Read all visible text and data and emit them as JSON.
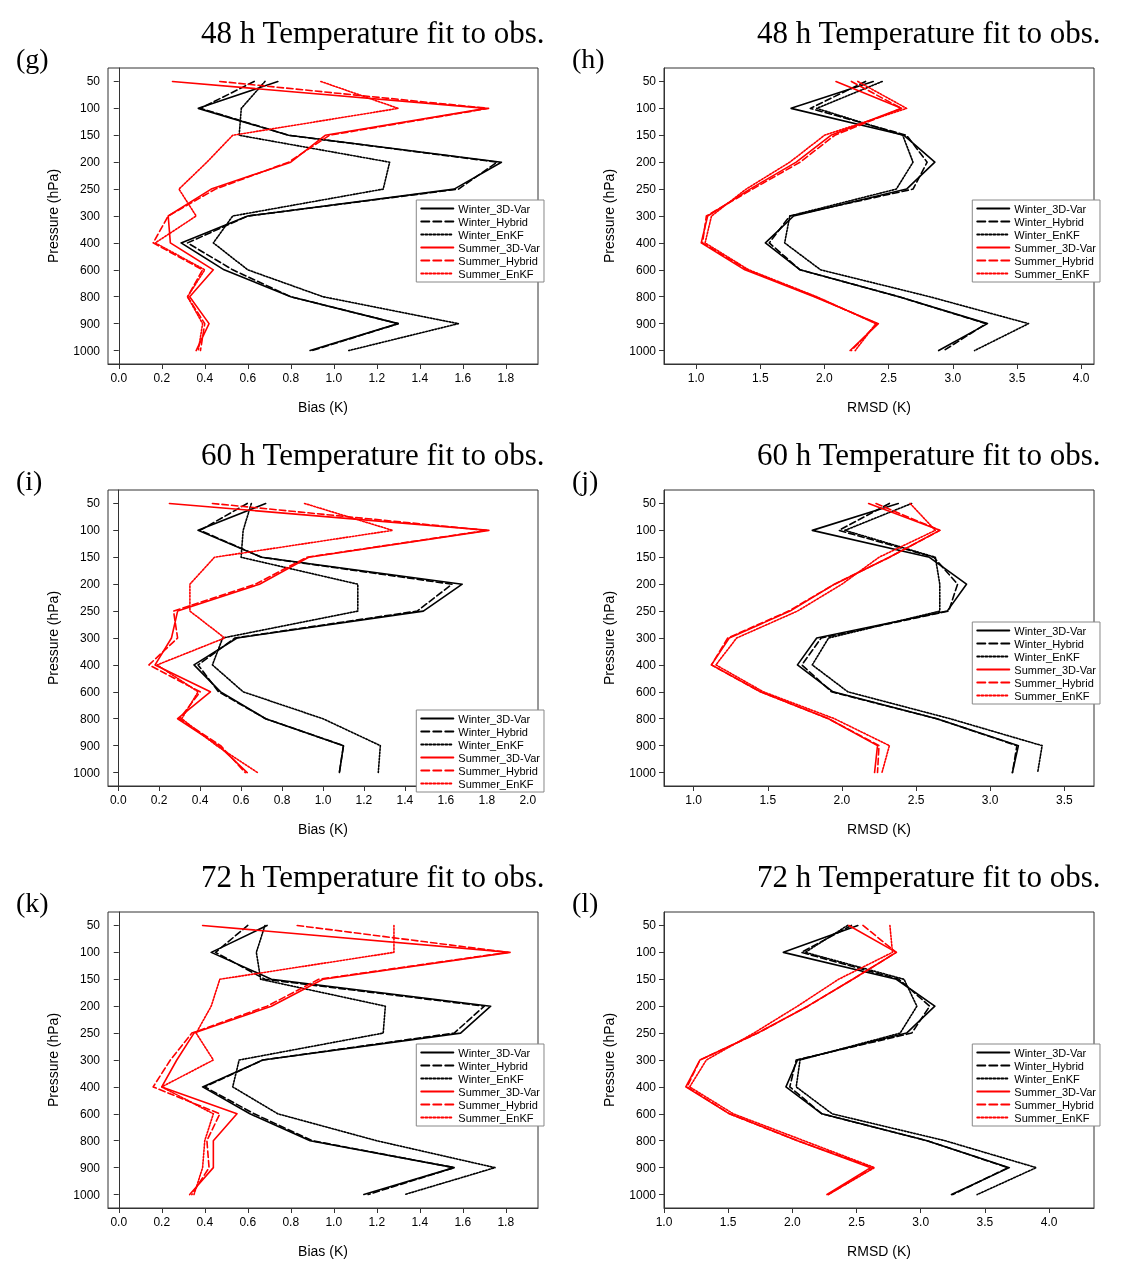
{
  "chart_data": [
    {
      "type": "line",
      "orientation": "horizontal",
      "title": "48 h Temperature fit to obs.",
      "annotations": [
        "(g)"
      ],
      "xlabel": "Bias (K)",
      "ylabel": "Pressure (hPa)",
      "categories": [
        "50",
        "100",
        "150",
        "200",
        "250",
        "300",
        "400",
        "600",
        "800",
        "900",
        "1000"
      ],
      "xlim": [
        -0.05,
        1.95
      ],
      "xticks": [
        {
          "value": 0,
          "label": "0.0"
        },
        {
          "value": 0.2,
          "label": "0.2"
        },
        {
          "value": 0.4,
          "label": "0.4"
        },
        {
          "value": 0.6,
          "label": "0.6"
        },
        {
          "value": 0.8,
          "label": "0.8"
        },
        {
          "value": 1,
          "label": "1.0"
        },
        {
          "value": 1.2,
          "label": "1.2"
        },
        {
          "value": 1.4,
          "label": "1.4"
        },
        {
          "value": 1.6,
          "label": "1.6"
        },
        {
          "value": 1.8,
          "label": "1.8"
        }
      ],
      "marker": "none",
      "legend": "right",
      "series": [
        {
          "name": "Winter_3D-Var",
          "color": "#000000",
          "line_style": "solid",
          "values": [
            0.74,
            0.37,
            0.79,
            1.78,
            1.56,
            0.6,
            0.29,
            0.49,
            0.8,
            1.3,
            0.89
          ]
        },
        {
          "name": "Winter_Hybrid",
          "color": "#000000",
          "line_style": "dashed",
          "values": [
            0.63,
            0.38,
            0.79,
            1.76,
            1.58,
            0.6,
            0.32,
            0.53,
            0.8,
            1.3,
            0.9
          ]
        },
        {
          "name": "Winter_EnKF",
          "color": "#000000",
          "line_style": "dotted",
          "values": [
            0.68,
            0.57,
            0.56,
            1.26,
            1.23,
            0.53,
            0.44,
            0.6,
            0.95,
            1.58,
            1.07
          ]
        },
        {
          "name": "Summer_3D-Var",
          "color": "#ff0000",
          "line_style": "solid",
          "values": [
            0.25,
            1.71,
            0.96,
            0.8,
            0.43,
            0.23,
            0.24,
            0.44,
            0.33,
            0.42,
            0.36
          ]
        },
        {
          "name": "Summer_Hybrid",
          "color": "#ff0000",
          "line_style": "dashed",
          "values": [
            0.47,
            1.72,
            0.98,
            0.79,
            0.45,
            0.23,
            0.16,
            0.39,
            0.32,
            0.4,
            0.38
          ]
        },
        {
          "name": "Summer_EnKF",
          "color": "#ff0000",
          "line_style": "dotted",
          "values": [
            0.94,
            1.3,
            0.53,
            0.41,
            0.28,
            0.36,
            0.17,
            0.4,
            0.32,
            0.39,
            0.37
          ]
        }
      ]
    },
    {
      "type": "line",
      "orientation": "horizontal",
      "title": "48 h Temperature fit to obs.",
      "annotations": [
        "(h)"
      ],
      "xlabel": "RMSD (K)",
      "ylabel": "Pressure (hPa)",
      "categories": [
        "50",
        "100",
        "150",
        "200",
        "250",
        "300",
        "400",
        "600",
        "800",
        "900",
        "1000"
      ],
      "xlim": [
        0.75,
        4.1
      ],
      "xticks": [
        {
          "value": 1,
          "label": "1.0"
        },
        {
          "value": 1.5,
          "label": "1.5"
        },
        {
          "value": 2,
          "label": "2.0"
        },
        {
          "value": 2.5,
          "label": "2.5"
        },
        {
          "value": 3,
          "label": "3.0"
        },
        {
          "value": 3.5,
          "label": "3.5"
        },
        {
          "value": 4,
          "label": "4.0"
        }
      ],
      "marker": "none",
      "legend": "right",
      "series": [
        {
          "name": "Winter_3D-Var",
          "color": "#000000",
          "line_style": "solid",
          "values": [
            2.38,
            1.74,
            2.62,
            2.86,
            2.64,
            1.76,
            1.54,
            1.81,
            2.58,
            3.27,
            2.89
          ]
        },
        {
          "name": "Winter_Hybrid",
          "color": "#000000",
          "line_style": "dashed",
          "values": [
            2.32,
            1.89,
            2.64,
            2.8,
            2.69,
            1.73,
            1.57,
            1.81,
            2.58,
            3.26,
            2.93
          ]
        },
        {
          "name": "Winter_EnKF",
          "color": "#000000",
          "line_style": "dotted",
          "values": [
            2.45,
            1.94,
            2.61,
            2.69,
            2.56,
            1.73,
            1.69,
            1.97,
            2.82,
            3.59,
            3.17
          ]
        },
        {
          "name": "Summer_3D-Var",
          "color": "#ff0000",
          "line_style": "solid",
          "values": [
            2.09,
            2.6,
            2.05,
            1.78,
            1.42,
            1.09,
            1.04,
            1.38,
            1.92,
            2.42,
            2.2
          ]
        },
        {
          "name": "Summer_Hybrid",
          "color": "#ff0000",
          "line_style": "dashed",
          "values": [
            2.21,
            2.6,
            2.08,
            1.81,
            1.44,
            1.08,
            1.05,
            1.4,
            1.93,
            2.41,
            2.21
          ]
        },
        {
          "name": "Summer_EnKF",
          "color": "#ff0000",
          "line_style": "dotted",
          "values": [
            2.26,
            2.64,
            2.0,
            1.73,
            1.39,
            1.12,
            1.07,
            1.41,
            1.94,
            2.4,
            2.24
          ]
        }
      ]
    },
    {
      "type": "line",
      "orientation": "horizontal",
      "title": "60 h Temperature fit to obs.",
      "annotations": [
        "(i)"
      ],
      "xlabel": "Bias (K)",
      "ylabel": "Pressure (hPa)",
      "categories": [
        "50",
        "100",
        "150",
        "200",
        "250",
        "300",
        "400",
        "600",
        "800",
        "900",
        "1000"
      ],
      "xlim": [
        -0.05,
        2.05
      ],
      "xticks": [
        {
          "value": 0,
          "label": "0.0"
        },
        {
          "value": 0.2,
          "label": "0.2"
        },
        {
          "value": 0.4,
          "label": "0.4"
        },
        {
          "value": 0.6,
          "label": "0.6"
        },
        {
          "value": 0.8,
          "label": "0.8"
        },
        {
          "value": 1,
          "label": "1.0"
        },
        {
          "value": 1.2,
          "label": "1.2"
        },
        {
          "value": 1.4,
          "label": "1.4"
        },
        {
          "value": 1.6,
          "label": "1.6"
        },
        {
          "value": 1.8,
          "label": "1.8"
        },
        {
          "value": 2,
          "label": "2.0"
        }
      ],
      "marker": "none",
      "legend": "bottom right",
      "series": [
        {
          "name": "Winter_3D-Var",
          "color": "#000000",
          "line_style": "solid",
          "values": [
            0.72,
            0.39,
            0.7,
            1.68,
            1.49,
            0.58,
            0.37,
            0.5,
            0.72,
            1.1,
            1.08
          ]
        },
        {
          "name": "Winter_Hybrid",
          "color": "#000000",
          "line_style": "dashed",
          "values": [
            0.63,
            0.4,
            0.7,
            1.63,
            1.46,
            0.57,
            0.39,
            0.49,
            0.72,
            1.1,
            1.08
          ]
        },
        {
          "name": "Winter_EnKF",
          "color": "#000000",
          "line_style": "dotted",
          "values": [
            0.65,
            0.61,
            0.6,
            1.17,
            1.17,
            0.51,
            0.46,
            0.61,
            1.0,
            1.28,
            1.27
          ]
        },
        {
          "name": "Summer_3D-Var",
          "color": "#ff0000",
          "line_style": "solid",
          "values": [
            0.25,
            1.81,
            0.93,
            0.69,
            0.29,
            0.26,
            0.18,
            0.45,
            0.29,
            0.49,
            0.63
          ]
        },
        {
          "name": "Summer_Hybrid",
          "color": "#ff0000",
          "line_style": "dashed",
          "values": [
            0.46,
            1.8,
            0.92,
            0.67,
            0.27,
            0.29,
            0.15,
            0.4,
            0.3,
            0.5,
            0.62
          ]
        },
        {
          "name": "Summer_EnKF",
          "color": "#ff0000",
          "line_style": "dotted",
          "values": [
            0.91,
            1.34,
            0.47,
            0.35,
            0.35,
            0.52,
            0.19,
            0.39,
            0.31,
            0.48,
            0.68
          ]
        }
      ]
    },
    {
      "type": "line",
      "orientation": "horizontal",
      "title": "60 h Temperature fit to obs.",
      "annotations": [
        "(j)"
      ],
      "xlabel": "RMSD (K)",
      "ylabel": "Pressure (hPa)",
      "categories": [
        "50",
        "100",
        "150",
        "200",
        "250",
        "300",
        "400",
        "600",
        "800",
        "900",
        "1000"
      ],
      "xlim": [
        0.8,
        3.7
      ],
      "xticks": [
        {
          "value": 1,
          "label": "1.0"
        },
        {
          "value": 1.5,
          "label": "1.5"
        },
        {
          "value": 2,
          "label": "2.0"
        },
        {
          "value": 2.5,
          "label": "2.5"
        },
        {
          "value": 3,
          "label": "3.0"
        },
        {
          "value": 3.5,
          "label": "3.5"
        }
      ],
      "marker": "none",
      "legend": "right",
      "series": [
        {
          "name": "Winter_3D-Var",
          "color": "#000000",
          "line_style": "solid",
          "values": [
            2.38,
            1.8,
            2.59,
            2.84,
            2.71,
            1.83,
            1.7,
            1.94,
            2.64,
            3.19,
            3.15
          ]
        },
        {
          "name": "Winter_Hybrid",
          "color": "#000000",
          "line_style": "dashed",
          "values": [
            2.32,
            1.98,
            2.62,
            2.78,
            2.72,
            1.86,
            1.73,
            1.93,
            2.64,
            3.18,
            3.15
          ]
        },
        {
          "name": "Winter_EnKF",
          "color": "#000000",
          "line_style": "dotted",
          "values": [
            2.47,
            2.02,
            2.63,
            2.66,
            2.66,
            1.91,
            1.8,
            2.04,
            2.73,
            3.35,
            3.32
          ]
        },
        {
          "name": "Summer_3D-Var",
          "color": "#ff0000",
          "line_style": "solid",
          "values": [
            2.18,
            2.66,
            2.32,
            1.95,
            1.65,
            1.24,
            1.12,
            1.45,
            1.91,
            2.24,
            2.22
          ]
        },
        {
          "name": "Summer_Hybrid",
          "color": "#ff0000",
          "line_style": "dashed",
          "values": [
            2.23,
            2.66,
            2.32,
            1.95,
            1.64,
            1.23,
            1.12,
            1.45,
            1.91,
            2.25,
            2.24
          ]
        },
        {
          "name": "Summer_EnKF",
          "color": "#ff0000",
          "line_style": "dotted",
          "values": [
            2.46,
            2.63,
            2.25,
            2.0,
            1.7,
            1.29,
            1.15,
            1.47,
            1.95,
            2.32,
            2.27
          ]
        }
      ]
    },
    {
      "type": "line",
      "orientation": "horizontal",
      "title": "72 h Temperature fit to obs.",
      "annotations": [
        "(k)"
      ],
      "xlabel": "Bias (K)",
      "ylabel": "Pressure (hPa)",
      "categories": [
        "50",
        "100",
        "150",
        "200",
        "250",
        "300",
        "400",
        "600",
        "800",
        "900",
        "1000"
      ],
      "xlim": [
        -0.05,
        1.95
      ],
      "xticks": [
        {
          "value": 0,
          "label": "0.0"
        },
        {
          "value": 0.2,
          "label": "0.2"
        },
        {
          "value": 0.4,
          "label": "0.4"
        },
        {
          "value": 0.6,
          "label": "0.6"
        },
        {
          "value": 0.8,
          "label": "0.8"
        },
        {
          "value": 1,
          "label": "1.0"
        },
        {
          "value": 1.2,
          "label": "1.2"
        },
        {
          "value": 1.4,
          "label": "1.4"
        },
        {
          "value": 1.6,
          "label": "1.6"
        },
        {
          "value": 1.8,
          "label": "1.8"
        }
      ],
      "marker": "none",
      "legend": "right",
      "series": [
        {
          "name": "Winter_3D-Var",
          "color": "#000000",
          "line_style": "solid",
          "values": [
            0.69,
            0.43,
            0.71,
            1.73,
            1.59,
            0.67,
            0.39,
            0.61,
            0.89,
            1.56,
            1.14
          ]
        },
        {
          "name": "Winter_Hybrid",
          "color": "#000000",
          "line_style": "dashed",
          "values": [
            0.6,
            0.45,
            0.68,
            1.7,
            1.56,
            0.67,
            0.4,
            0.63,
            0.9,
            1.56,
            1.16
          ]
        },
        {
          "name": "Winter_EnKF",
          "color": "#000000",
          "line_style": "dotted",
          "values": [
            0.68,
            0.64,
            0.66,
            1.24,
            1.23,
            0.56,
            0.53,
            0.74,
            1.2,
            1.75,
            1.33
          ]
        },
        {
          "name": "Summer_3D-Var",
          "color": "#ff0000",
          "line_style": "solid",
          "values": [
            0.39,
            1.82,
            0.95,
            0.71,
            0.35,
            0.27,
            0.2,
            0.55,
            0.44,
            0.44,
            0.33
          ]
        },
        {
          "name": "Summer_Hybrid",
          "color": "#ff0000",
          "line_style": "dashed",
          "values": [
            0.83,
            1.81,
            0.93,
            0.69,
            0.34,
            0.24,
            0.16,
            0.47,
            0.41,
            0.42,
            0.34
          ]
        },
        {
          "name": "Summer_EnKF",
          "color": "#ff0000",
          "line_style": "dotted",
          "values": [
            1.28,
            1.28,
            0.47,
            0.43,
            0.36,
            0.44,
            0.2,
            0.44,
            0.4,
            0.39,
            0.35
          ]
        }
      ]
    },
    {
      "type": "line",
      "orientation": "horizontal",
      "title": "72 h Temperature fit to obs.",
      "annotations": [
        "(l)"
      ],
      "xlabel": "RMSD (K)",
      "ylabel": "Pressure (hPa)",
      "categories": [
        "50",
        "100",
        "150",
        "200",
        "250",
        "300",
        "400",
        "600",
        "800",
        "900",
        "1000"
      ],
      "xlim": [
        1,
        4.35
      ],
      "xticks": [
        {
          "value": 1,
          "label": "1.0"
        },
        {
          "value": 1.5,
          "label": "1.5"
        },
        {
          "value": 2,
          "label": "2.0"
        },
        {
          "value": 2.5,
          "label": "2.5"
        },
        {
          "value": 3,
          "label": "3.0"
        },
        {
          "value": 3.5,
          "label": "3.5"
        },
        {
          "value": 4,
          "label": "4.0"
        }
      ],
      "marker": "none",
      "legend": "right",
      "series": [
        {
          "name": "Winter_3D-Var",
          "color": "#000000",
          "line_style": "solid",
          "values": [
            2.51,
            1.93,
            2.81,
            3.11,
            2.89,
            2.04,
            1.95,
            2.23,
            3.05,
            3.69,
            3.24
          ]
        },
        {
          "name": "Winter_Hybrid",
          "color": "#000000",
          "line_style": "dashed",
          "values": [
            2.46,
            2.07,
            2.83,
            3.07,
            2.93,
            2.03,
            1.98,
            2.23,
            3.05,
            3.68,
            3.25
          ]
        },
        {
          "name": "Winter_EnKF",
          "color": "#000000",
          "line_style": "dotted",
          "values": [
            2.43,
            2.1,
            2.87,
            2.97,
            2.84,
            2.06,
            2.03,
            2.31,
            3.19,
            3.9,
            3.44
          ]
        },
        {
          "name": "Summer_3D-Var",
          "color": "#ff0000",
          "line_style": "solid",
          "values": [
            2.44,
            2.81,
            2.47,
            2.12,
            1.73,
            1.28,
            1.17,
            1.51,
            2.04,
            2.61,
            2.27
          ]
        },
        {
          "name": "Summer_Hybrid",
          "color": "#ff0000",
          "line_style": "dashed",
          "values": [
            2.55,
            2.81,
            2.47,
            2.12,
            1.73,
            1.28,
            1.18,
            1.51,
            2.04,
            2.63,
            2.28
          ]
        },
        {
          "name": "Summer_EnKF",
          "color": "#ff0000",
          "line_style": "dotted",
          "values": [
            2.76,
            2.78,
            2.36,
            2.04,
            1.7,
            1.33,
            1.2,
            1.54,
            2.09,
            2.64,
            2.28
          ]
        }
      ]
    }
  ]
}
